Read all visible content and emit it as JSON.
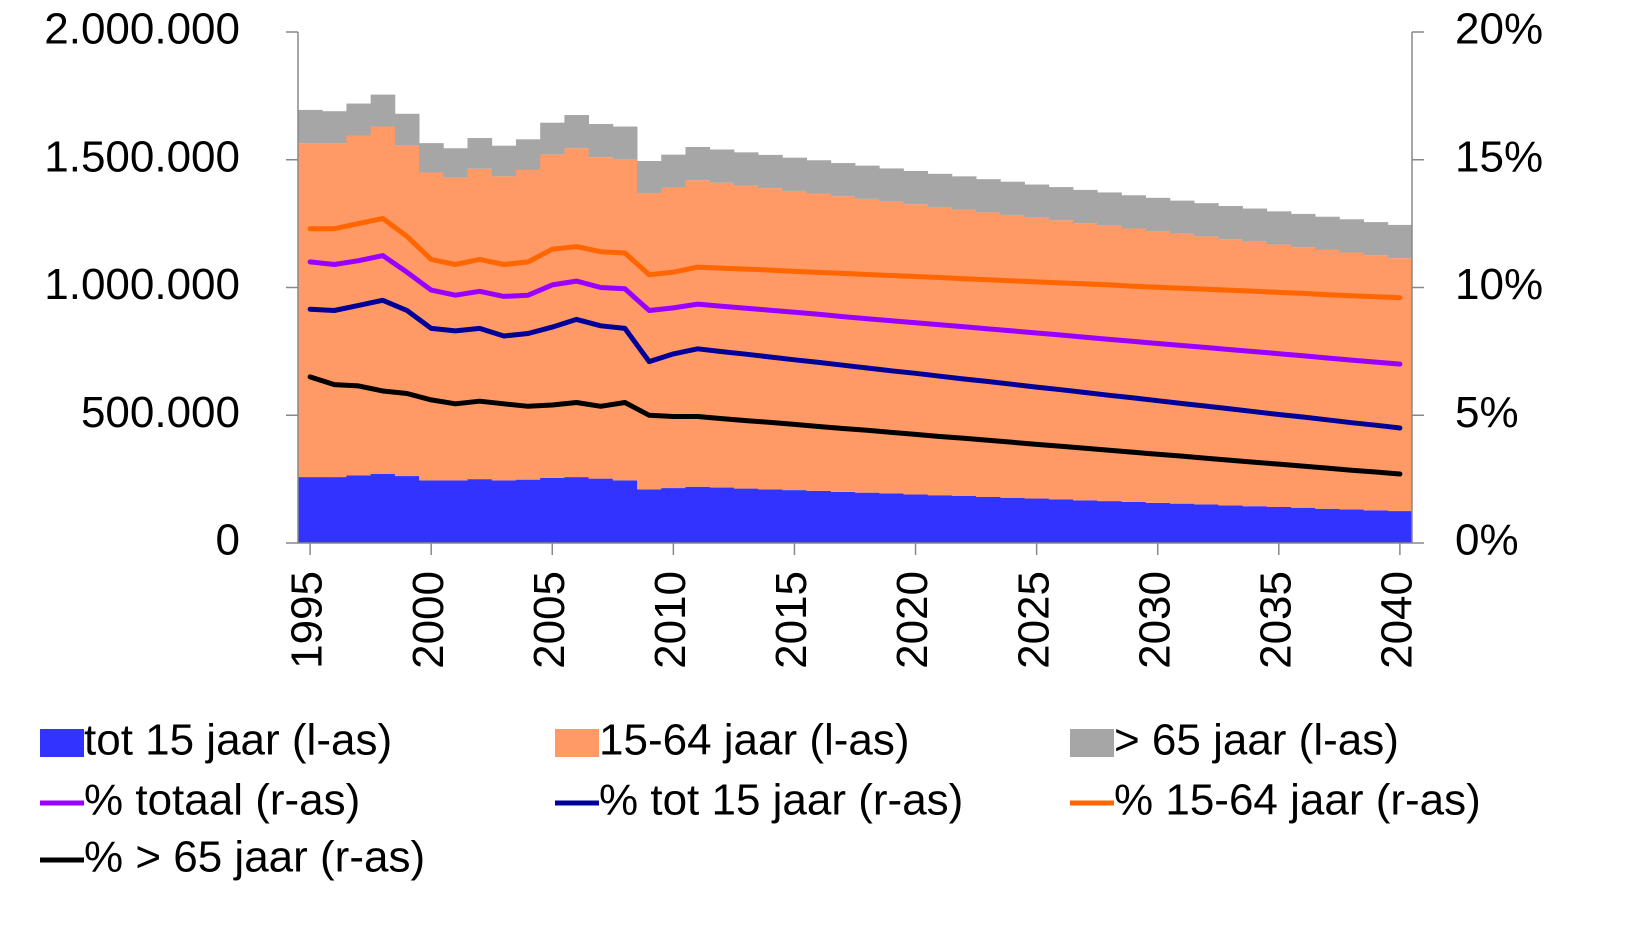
{
  "chart_data": {
    "type": "bar",
    "stacked": true,
    "x": [
      1995,
      1996,
      1997,
      1998,
      1999,
      2000,
      2001,
      2002,
      2003,
      2004,
      2005,
      2006,
      2007,
      2008,
      2009,
      2010,
      2011,
      2012,
      2013,
      2014,
      2015,
      2016,
      2017,
      2018,
      2019,
      2020,
      2021,
      2022,
      2023,
      2024,
      2025,
      2026,
      2027,
      2028,
      2029,
      2030,
      2031,
      2032,
      2033,
      2034,
      2035,
      2036,
      2037,
      2038,
      2039,
      2040
    ],
    "xlim": [
      1994.5,
      2040.5
    ],
    "xticks": [
      1995,
      2000,
      2005,
      2010,
      2015,
      2020,
      2025,
      2030,
      2035,
      2040
    ],
    "ylim": [
      0,
      2000000
    ],
    "yticks": [
      0,
      {
        "value": 500000,
        "label": "500.000"
      },
      {
        "value": 1000000,
        "label": "1.000.000"
      },
      {
        "value": 1500000,
        "label": "1.500.000"
      },
      {
        "value": 2000000,
        "label": "2.000.000"
      }
    ],
    "y2lim": [
      0,
      20
    ],
    "y2ticks": [
      {
        "value": 0,
        "label": "0%"
      },
      {
        "value": 5,
        "label": "5%"
      },
      {
        "value": 10,
        "label": "10%"
      },
      {
        "value": 15,
        "label": "15%"
      },
      {
        "value": 20,
        "label": "20%"
      }
    ],
    "series": [
      {
        "name": "tot 15 jaar (l-as)",
        "type": "bar",
        "color": "#3333ff",
        "values": [
          258000,
          258000,
          265000,
          270000,
          262000,
          245000,
          245000,
          250000,
          245000,
          248000,
          255000,
          258000,
          252000,
          245000,
          210000,
          215000,
          220000,
          217000,
          213000,
          210000,
          207000,
          204000,
          200000,
          197000,
          194000,
          190000,
          187000,
          184000,
          180000,
          177000,
          174000,
          171000,
          167000,
          164000,
          161000,
          157000,
          154000,
          151000,
          147000,
          144000,
          141000,
          138000,
          134000,
          131000,
          128000,
          125000
        ]
      },
      {
        "name": "15-64 jaar (l-as)",
        "type": "bar",
        "color": "#ff9966",
        "values": [
          1307000,
          1307000,
          1330000,
          1360000,
          1293000,
          1205000,
          1185000,
          1215000,
          1190000,
          1212000,
          1265000,
          1287000,
          1258000,
          1255000,
          1160000,
          1175000,
          1200000,
          1193000,
          1186000,
          1179000,
          1171000,
          1164000,
          1157000,
          1150000,
          1142000,
          1136000,
          1128000,
          1121000,
          1114000,
          1107000,
          1099000,
          1092000,
          1085000,
          1078000,
          1070000,
          1064000,
          1056000,
          1049000,
          1042000,
          1035000,
          1027000,
          1020000,
          1013000,
          1006000,
          998000,
          990000
        ]
      },
      {
        "name": "> 65 jaar (l-as)",
        "type": "bar",
        "color": "#a6a6a6",
        "values": [
          130000,
          125000,
          125000,
          125000,
          125000,
          115000,
          115000,
          120000,
          120000,
          120000,
          125000,
          130000,
          130000,
          130000,
          125000,
          130000,
          130000,
          130000,
          130000,
          130000,
          130000,
          130000,
          130000,
          130000,
          130000,
          130000,
          130000,
          130000,
          130000,
          130000,
          130000,
          130000,
          130000,
          130000,
          130000,
          130000,
          130000,
          130000,
          130000,
          130000,
          130000,
          130000,
          130000,
          130000,
          130000,
          130000
        ]
      },
      {
        "name": "% totaal (r-as)",
        "type": "line",
        "axis": "y2",
        "color": "#9900ff",
        "values": [
          11.0,
          10.9,
          11.05,
          11.25,
          10.6,
          9.9,
          9.7,
          9.85,
          9.65,
          9.7,
          10.1,
          10.25,
          10.0,
          9.95,
          9.1,
          9.2,
          9.35,
          9.27,
          9.19,
          9.11,
          9.03,
          8.95,
          8.86,
          8.78,
          8.7,
          8.62,
          8.54,
          8.46,
          8.38,
          8.3,
          8.22,
          8.14,
          8.05,
          7.97,
          7.89,
          7.81,
          7.73,
          7.65,
          7.57,
          7.49,
          7.41,
          7.33,
          7.24,
          7.16,
          7.08,
          7.0
        ]
      },
      {
        "name": "% tot 15 jaar (r-as)",
        "type": "line",
        "axis": "y2",
        "color": "#000099",
        "values": [
          9.15,
          9.1,
          9.3,
          9.5,
          9.1,
          8.4,
          8.3,
          8.4,
          8.1,
          8.2,
          8.45,
          8.75,
          8.5,
          8.4,
          7.1,
          7.4,
          7.6,
          7.49,
          7.39,
          7.28,
          7.17,
          7.07,
          6.96,
          6.85,
          6.74,
          6.64,
          6.53,
          6.42,
          6.32,
          6.21,
          6.1,
          6.0,
          5.89,
          5.78,
          5.68,
          5.57,
          5.46,
          5.36,
          5.25,
          5.14,
          5.03,
          4.93,
          4.82,
          4.71,
          4.61,
          4.5
        ]
      },
      {
        "name": "% 15-64 jaar (r-as)",
        "type": "line",
        "axis": "y2",
        "color": "#ff6600",
        "values": [
          12.3,
          12.3,
          12.5,
          12.7,
          12.0,
          11.1,
          10.9,
          11.1,
          10.9,
          11.0,
          11.5,
          11.6,
          11.4,
          11.35,
          10.5,
          10.6,
          10.8,
          10.76,
          10.72,
          10.68,
          10.63,
          10.59,
          10.55,
          10.51,
          10.47,
          10.43,
          10.39,
          10.34,
          10.3,
          10.26,
          10.22,
          10.18,
          10.14,
          10.1,
          10.05,
          10.01,
          9.97,
          9.93,
          9.89,
          9.85,
          9.81,
          9.77,
          9.72,
          9.68,
          9.64,
          9.6
        ]
      },
      {
        "name": "% > 65 jaar (r-as)",
        "type": "line",
        "axis": "y2",
        "color": "#000000",
        "values": [
          6.5,
          6.2,
          6.15,
          5.95,
          5.85,
          5.6,
          5.45,
          5.55,
          5.45,
          5.35,
          5.4,
          5.5,
          5.35,
          5.5,
          5.0,
          4.95,
          4.95,
          4.87,
          4.79,
          4.72,
          4.64,
          4.56,
          4.48,
          4.41,
          4.33,
          4.25,
          4.17,
          4.1,
          4.02,
          3.94,
          3.86,
          3.79,
          3.71,
          3.63,
          3.55,
          3.47,
          3.4,
          3.32,
          3.24,
          3.16,
          3.09,
          3.01,
          2.93,
          2.85,
          2.78,
          2.7
        ]
      }
    ]
  }
}
